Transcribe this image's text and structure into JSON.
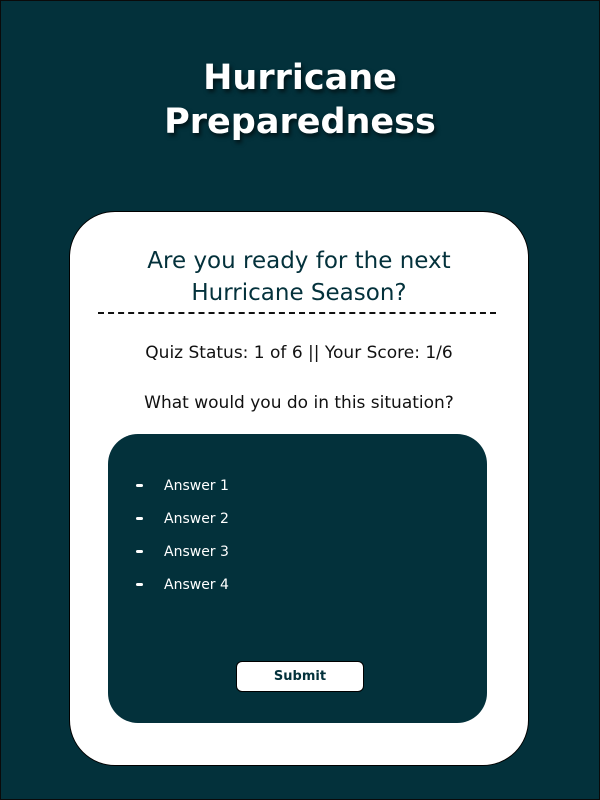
{
  "header": {
    "title_line1": "Hurricane",
    "title_line2": "Preparedness"
  },
  "quiz": {
    "heading_line1": "Are you ready for the next",
    "heading_line2": "Hurricane Season?",
    "status": "Quiz Status: 1 of 6 || Your Score: 1/6",
    "prompt": "What would you do in this situation?",
    "answers": [
      {
        "label": "Answer 1"
      },
      {
        "label": "Answer 2"
      },
      {
        "label": "Answer 3"
      },
      {
        "label": "Answer 4"
      }
    ],
    "submit_label": "Submit"
  },
  "colors": {
    "background": "#03313b",
    "card": "#ffffff",
    "panel": "#03313b",
    "text_dark": "#111111"
  }
}
